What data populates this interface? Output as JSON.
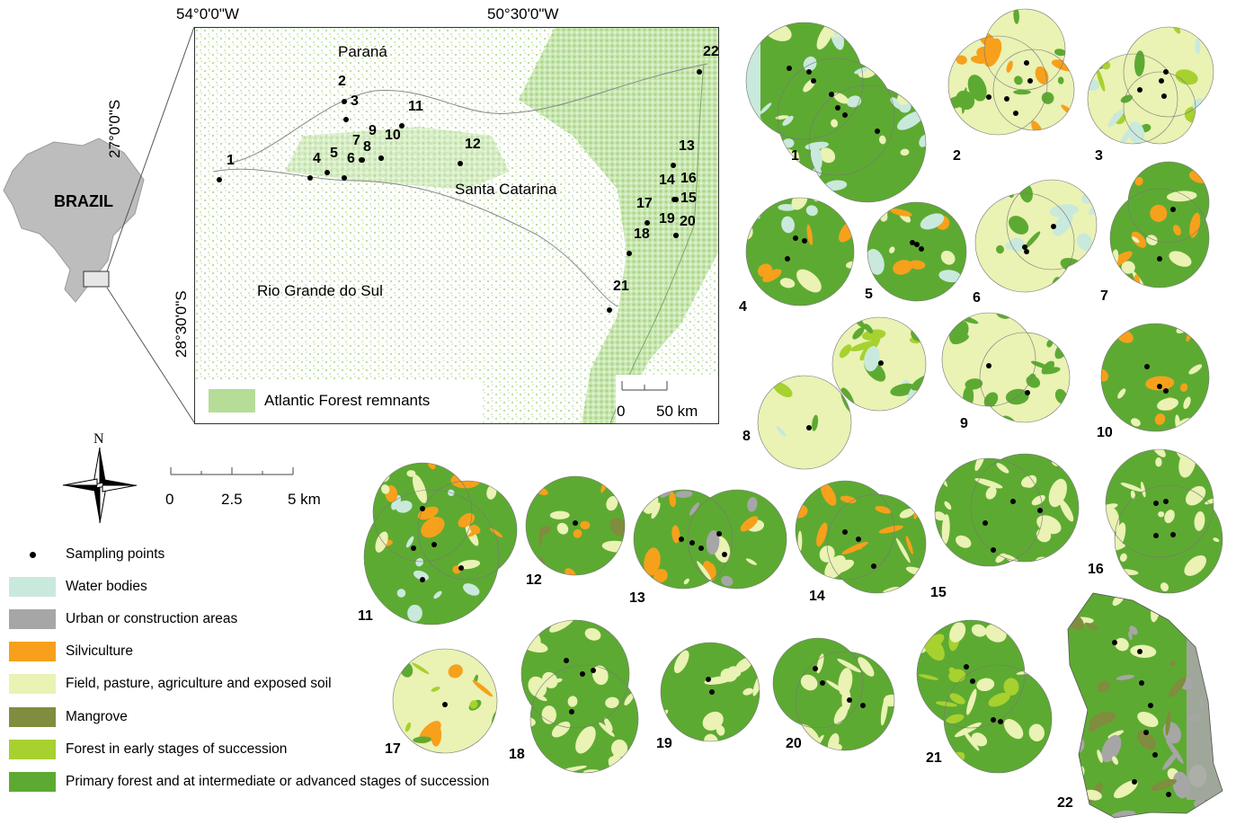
{
  "country_label": "BRAZIL",
  "map": {
    "lon_labels": [
      "54°0'0\"W",
      "50°30'0\"W"
    ],
    "lat_labels": [
      "27°0'0\"S",
      "28°30'0\"S"
    ],
    "state_labels": [
      "Paraná",
      "Santa Catarina",
      "Rio Grande do Sul"
    ],
    "remnants_legend": "Atlantic Forest remnants",
    "scale_labels": [
      "0",
      "50 km"
    ],
    "site_labels": [
      "1",
      "2",
      "3",
      "4",
      "5",
      "6",
      "7",
      "8",
      "9",
      "10",
      "11",
      "12",
      "13",
      "14",
      "15",
      "16",
      "17",
      "18",
      "19",
      "20",
      "21",
      "22"
    ]
  },
  "north_arrow_label": "N",
  "detail_scale_labels": [
    "0",
    "2.5",
    "5 km"
  ],
  "legend": [
    {
      "label": "Sampling points",
      "kind": "dot",
      "color": "#000000"
    },
    {
      "label": "Water bodies",
      "kind": "swatch",
      "color": "#c9e9dc"
    },
    {
      "label": "Urban or construction areas",
      "kind": "swatch",
      "color": "#a6a6a6"
    },
    {
      "label": "Silviculture",
      "kind": "swatch",
      "color": "#f7a01b"
    },
    {
      "label": "Field, pasture, agriculture and exposed soil",
      "kind": "swatch",
      "color": "#eaf2b4"
    },
    {
      "label": "Mangrove",
      "kind": "swatch",
      "color": "#808c3e"
    },
    {
      "label": "Forest in early stages of succession",
      "kind": "swatch",
      "color": "#a7d12f"
    },
    {
      "label": "Primary forest and at intermediate or advanced stages of succession",
      "kind": "swatch",
      "color": "#5daa32"
    }
  ],
  "site_maps": [
    "1",
    "2",
    "3",
    "4",
    "5",
    "6",
    "7",
    "8",
    "9",
    "10",
    "11",
    "12",
    "13",
    "14",
    "15",
    "16",
    "17",
    "18",
    "19",
    "20",
    "21",
    "22"
  ],
  "colors": {
    "forest": "#5daa32",
    "field": "#eaf2b4",
    "silviculture": "#f7a01b",
    "water": "#c9e9dc",
    "urban": "#a6a6a6",
    "mangrove": "#808c3e",
    "early_forest": "#a7d12f",
    "remnant": "#b5dd98",
    "gray": "#bdbdbd"
  }
}
